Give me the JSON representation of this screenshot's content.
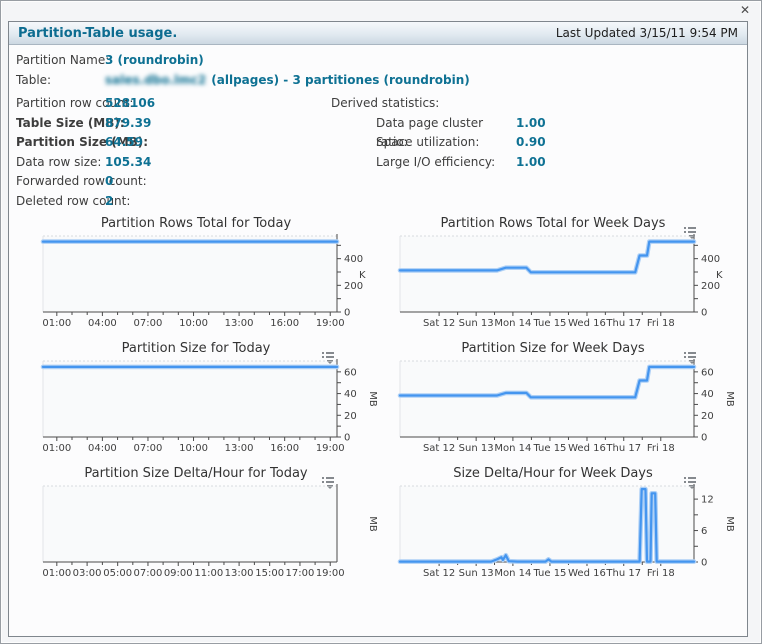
{
  "window": {
    "close_icon": "✕"
  },
  "header": {
    "title": "Partition-Table usage.",
    "last_updated": "Last Updated 3/15/11 9:54 PM"
  },
  "info": {
    "left": [
      {
        "label": "Partition Name:",
        "value": "3 (roundrobin)"
      },
      {
        "label": "Table:",
        "blurred": "sales.dbo.lmc2",
        "value": "(allpages) - 3 partitiones (roundrobin)"
      },
      {
        "label": "Partition row count:",
        "value": "528106"
      },
      {
        "label": "Table Size (MB):",
        "value": "879.39"
      },
      {
        "label": "Partition Size (MB):",
        "value": "64.59"
      },
      {
        "label": "Data row size:",
        "value": "105.34"
      },
      {
        "label": "Forwarded row count:",
        "value": "0"
      },
      {
        "label": "Deleted row count:",
        "value": "2"
      }
    ],
    "derived": {
      "title": "Derived statistics:",
      "rows": [
        {
          "label": "Data page cluster ratio:",
          "value": "1.00"
        },
        {
          "label": "Space utilization:",
          "value": "0.90"
        },
        {
          "label": "Large I/O efficiency:",
          "value": "1.00"
        }
      ]
    }
  },
  "colors": {
    "accent_teal": "#0e7193",
    "line_blue": "#4495ef"
  },
  "chart_data": [
    {
      "type": "line",
      "title": "Partition Rows Total for Today",
      "unit": "K",
      "unit_rotated": false,
      "menu_icon": false,
      "xticks": [
        [
          "01:00",
          0.047
        ],
        [
          "04:00",
          0.202
        ],
        [
          "07:00",
          0.357
        ],
        [
          "10:00",
          0.512
        ],
        [
          "13:00",
          0.667
        ],
        [
          "16:00",
          0.822
        ],
        [
          "19:00",
          0.977
        ]
      ],
      "minor_div": 3,
      "yticks": [
        [
          0,
          "0"
        ],
        [
          100,
          ""
        ],
        [
          200,
          "200"
        ],
        [
          300,
          ""
        ],
        [
          400,
          "400"
        ],
        [
          500,
          ""
        ]
      ],
      "ylim": [
        0,
        570
      ],
      "points": [
        [
          0,
          528
        ],
        [
          1,
          528
        ]
      ]
    },
    {
      "type": "line",
      "title": "Partition Rows Total for Week Days",
      "unit": "K",
      "unit_rotated": false,
      "menu_icon": true,
      "xticks": [
        [
          "Sat 12",
          0.133
        ],
        [
          "Sun 13",
          0.259
        ],
        [
          "Mon 14",
          0.384
        ],
        [
          "Tue 15",
          0.51
        ],
        [
          "Wed 16",
          0.636
        ],
        [
          "Thu 17",
          0.761
        ],
        [
          "Fri 18",
          0.887
        ]
      ],
      "minor_div": 2,
      "yticks": [
        [
          0,
          "0"
        ],
        [
          100,
          ""
        ],
        [
          200,
          "200"
        ],
        [
          300,
          ""
        ],
        [
          400,
          "400"
        ],
        [
          500,
          ""
        ]
      ],
      "ylim": [
        0,
        570
      ],
      "points": [
        [
          0,
          312
        ],
        [
          0.33,
          312
        ],
        [
          0.36,
          332
        ],
        [
          0.43,
          332
        ],
        [
          0.445,
          298
        ],
        [
          0.8,
          298
        ],
        [
          0.815,
          424
        ],
        [
          0.84,
          424
        ],
        [
          0.848,
          528
        ],
        [
          1,
          528
        ]
      ]
    },
    {
      "type": "line",
      "title": "Partition Size for Today",
      "unit": "MB",
      "unit_rotated": true,
      "menu_icon": true,
      "xticks": [
        [
          "01:00",
          0.047
        ],
        [
          "04:00",
          0.202
        ],
        [
          "07:00",
          0.357
        ],
        [
          "10:00",
          0.512
        ],
        [
          "13:00",
          0.667
        ],
        [
          "16:00",
          0.822
        ],
        [
          "19:00",
          0.977
        ]
      ],
      "minor_div": 3,
      "yticks": [
        [
          0,
          "0"
        ],
        [
          10,
          ""
        ],
        [
          20,
          "20"
        ],
        [
          30,
          ""
        ],
        [
          40,
          "40"
        ],
        [
          50,
          ""
        ],
        [
          60,
          "60"
        ]
      ],
      "ylim": [
        0,
        70
      ],
      "points": [
        [
          0,
          64.59
        ],
        [
          1,
          64.59
        ]
      ]
    },
    {
      "type": "line",
      "title": "Partition Size for Week Days",
      "unit": "MB",
      "unit_rotated": true,
      "menu_icon": true,
      "xticks": [
        [
          "Sat 12",
          0.133
        ],
        [
          "Sun 13",
          0.259
        ],
        [
          "Mon 14",
          0.384
        ],
        [
          "Tue 15",
          0.51
        ],
        [
          "Wed 16",
          0.636
        ],
        [
          "Thu 17",
          0.761
        ],
        [
          "Fri 18",
          0.887
        ]
      ],
      "minor_div": 2,
      "yticks": [
        [
          0,
          "0"
        ],
        [
          10,
          ""
        ],
        [
          20,
          "20"
        ],
        [
          30,
          ""
        ],
        [
          40,
          "40"
        ],
        [
          50,
          ""
        ],
        [
          60,
          "60"
        ]
      ],
      "ylim": [
        0,
        70
      ],
      "points": [
        [
          0,
          38.2
        ],
        [
          0.33,
          38.2
        ],
        [
          0.36,
          40.6
        ],
        [
          0.43,
          40.6
        ],
        [
          0.445,
          36.6
        ],
        [
          0.8,
          36.6
        ],
        [
          0.815,
          52
        ],
        [
          0.84,
          52
        ],
        [
          0.848,
          64.59
        ],
        [
          1,
          64.59
        ]
      ]
    },
    {
      "type": "line",
      "title": "Partition Size Delta/Hour for Today",
      "unit": "MB",
      "unit_rotated": true,
      "menu_icon": true,
      "xticks": [
        [
          "01:00",
          0.047
        ],
        [
          "03:00",
          0.15
        ],
        [
          "05:00",
          0.254
        ],
        [
          "07:00",
          0.357
        ],
        [
          "09:00",
          0.46
        ],
        [
          "11:00",
          0.564
        ],
        [
          "13:00",
          0.667
        ],
        [
          "15:00",
          0.771
        ],
        [
          "17:00",
          0.874
        ],
        [
          "19:00",
          0.977
        ]
      ],
      "minor_div": 2,
      "yticks": [],
      "ylim": [
        0,
        1
      ],
      "points": []
    },
    {
      "type": "line",
      "title": "Size Delta/Hour for Week Days",
      "unit": "MB",
      "unit_rotated": true,
      "menu_icon": true,
      "xticks": [
        [
          "Sat 12",
          0.133
        ],
        [
          "Sun 13",
          0.259
        ],
        [
          "Mon 14",
          0.384
        ],
        [
          "Tue 15",
          0.51
        ],
        [
          "Wed 16",
          0.636
        ],
        [
          "Thu 17",
          0.761
        ],
        [
          "Fri 18",
          0.887
        ]
      ],
      "minor_div": 2,
      "yticks": [
        [
          0,
          "0"
        ],
        [
          3,
          ""
        ],
        [
          6,
          "6"
        ],
        [
          9,
          ""
        ],
        [
          12,
          "12"
        ]
      ],
      "ylim": [
        0,
        14.5
      ],
      "points": [
        [
          0,
          0.08
        ],
        [
          0.31,
          0.08
        ],
        [
          0.33,
          0.5
        ],
        [
          0.345,
          0.9
        ],
        [
          0.35,
          0.4
        ],
        [
          0.36,
          1.3
        ],
        [
          0.37,
          0.15
        ],
        [
          0.4,
          0.08
        ],
        [
          0.495,
          0.08
        ],
        [
          0.505,
          0.5
        ],
        [
          0.515,
          0.08
        ],
        [
          0.815,
          0.08
        ],
        [
          0.822,
          13.9
        ],
        [
          0.835,
          13.9
        ],
        [
          0.84,
          0.08
        ],
        [
          0.852,
          0.08
        ],
        [
          0.856,
          13.1
        ],
        [
          0.868,
          13.1
        ],
        [
          0.873,
          0.08
        ],
        [
          1,
          0.08
        ]
      ]
    }
  ]
}
